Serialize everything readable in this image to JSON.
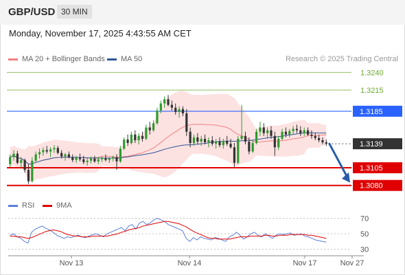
{
  "header": {
    "pair": "GBP/USD",
    "timeframe": "30 MIN"
  },
  "datetime": "Monday, November 17, 2025 4:43:55 AM CET",
  "legend": {
    "ma_label": "MA 20 + Bollinger Bands",
    "ma_color": "#f08080",
    "ma50_label": "MA 50",
    "ma50_color": "#2f5597"
  },
  "credit": "Research © 2025 Trading Central",
  "rsi_legend": {
    "rsi_label": "RSI",
    "rsi_color": "#5b7fd6",
    "ma_label": "9MA",
    "ma_color": "#e00000"
  },
  "chart_data": [
    {
      "type": "candlestick",
      "x_labels": [
        "Nov 13",
        "Nov 14",
        "Nov 17",
        "Nov 27"
      ],
      "ylim": [
        1.307,
        1.325
      ],
      "last_price": "1.3139",
      "levels": [
        {
          "label": "1.3240",
          "value": 1.324,
          "kind": "resistance",
          "color": "#6aaa2a"
        },
        {
          "label": "1.3215",
          "value": 1.3215,
          "kind": "resistance",
          "color": "#6aaa2a"
        },
        {
          "label": "1.3185",
          "value": 1.3185,
          "kind": "pivot",
          "color": "#2962ff"
        },
        {
          "label": "1.3105",
          "value": 1.3105,
          "kind": "support",
          "color": "#e00000"
        },
        {
          "label": "1.3080",
          "value": 1.308,
          "kind": "support",
          "color": "#e00000"
        }
      ],
      "projection": {
        "from": 1.314,
        "to": 1.308,
        "color": "#2a5ca8"
      },
      "candles": [
        [
          1.311,
          1.3124,
          1.3106,
          1.312
        ],
        [
          1.312,
          1.313,
          1.3115,
          1.3125
        ],
        [
          1.3125,
          1.3129,
          1.311,
          1.3112
        ],
        [
          1.3112,
          1.312,
          1.3105,
          1.3116
        ],
        [
          1.3116,
          1.3118,
          1.3098,
          1.3102
        ],
        [
          1.3102,
          1.311,
          1.3082,
          1.3086
        ],
        [
          1.3086,
          1.312,
          1.3084,
          1.3115
        ],
        [
          1.3115,
          1.3128,
          1.3112,
          1.3124
        ],
        [
          1.3124,
          1.3132,
          1.3118,
          1.3127
        ],
        [
          1.3127,
          1.3134,
          1.3122,
          1.313
        ],
        [
          1.313,
          1.3136,
          1.3125,
          1.3128
        ],
        [
          1.3128,
          1.3134,
          1.312,
          1.3131
        ],
        [
          1.3131,
          1.3137,
          1.3126,
          1.3133
        ],
        [
          1.3133,
          1.3136,
          1.3124,
          1.3126
        ],
        [
          1.3126,
          1.313,
          1.3118,
          1.3121
        ],
        [
          1.3121,
          1.3126,
          1.3115,
          1.3124
        ],
        [
          1.3124,
          1.3128,
          1.3118,
          1.312
        ],
        [
          1.312,
          1.3124,
          1.3113,
          1.3116
        ],
        [
          1.3116,
          1.3122,
          1.3112,
          1.3119
        ],
        [
          1.3119,
          1.3125,
          1.3114,
          1.3117
        ],
        [
          1.3117,
          1.3122,
          1.311,
          1.3113
        ],
        [
          1.3113,
          1.3119,
          1.3108,
          1.3115
        ],
        [
          1.3115,
          1.3121,
          1.3111,
          1.3118
        ],
        [
          1.3118,
          1.3122,
          1.3112,
          1.3114
        ],
        [
          1.3114,
          1.312,
          1.311,
          1.3117
        ],
        [
          1.3117,
          1.3121,
          1.3113,
          1.3119
        ],
        [
          1.3119,
          1.3124,
          1.3114,
          1.3116
        ],
        [
          1.3116,
          1.312,
          1.3112,
          1.3118
        ],
        [
          1.3118,
          1.3122,
          1.3114,
          1.312
        ],
        [
          1.312,
          1.3124,
          1.3102,
          1.3114
        ],
        [
          1.3114,
          1.3136,
          1.3112,
          1.3132
        ],
        [
          1.3132,
          1.3148,
          1.313,
          1.3145
        ],
        [
          1.3145,
          1.3152,
          1.3136,
          1.314
        ],
        [
          1.314,
          1.3156,
          1.3138,
          1.3152
        ],
        [
          1.3152,
          1.3158,
          1.314,
          1.3144
        ],
        [
          1.3144,
          1.3154,
          1.3138,
          1.315
        ],
        [
          1.315,
          1.3156,
          1.3142,
          1.3146
        ],
        [
          1.3146,
          1.3166,
          1.3144,
          1.3162
        ],
        [
          1.3162,
          1.317,
          1.3152,
          1.3158
        ],
        [
          1.3158,
          1.3172,
          1.3156,
          1.3168
        ],
        [
          1.3168,
          1.319,
          1.3166,
          1.3186
        ],
        [
          1.3186,
          1.32,
          1.3182,
          1.3196
        ],
        [
          1.3196,
          1.3206,
          1.319,
          1.3202
        ],
        [
          1.3202,
          1.3208,
          1.3192,
          1.3194
        ],
        [
          1.3194,
          1.32,
          1.3186,
          1.319
        ],
        [
          1.319,
          1.3196,
          1.318,
          1.3184
        ],
        [
          1.3184,
          1.3192,
          1.3176,
          1.3188
        ],
        [
          1.3188,
          1.3192,
          1.3178,
          1.3182
        ],
        [
          1.3182,
          1.3188,
          1.315,
          1.3156
        ],
        [
          1.3156,
          1.3162,
          1.3134,
          1.314
        ],
        [
          1.314,
          1.3152,
          1.3136,
          1.3148
        ],
        [
          1.3148,
          1.3154,
          1.3138,
          1.3142
        ],
        [
          1.3142,
          1.315,
          1.3136,
          1.3146
        ],
        [
          1.3146,
          1.3152,
          1.3138,
          1.3141
        ],
        [
          1.3141,
          1.3148,
          1.3134,
          1.3144
        ],
        [
          1.3144,
          1.315,
          1.3136,
          1.3139
        ],
        [
          1.3139,
          1.3146,
          1.3132,
          1.3142
        ],
        [
          1.3142,
          1.3148,
          1.3134,
          1.3137
        ],
        [
          1.3137,
          1.3146,
          1.3132,
          1.3143
        ],
        [
          1.3143,
          1.315,
          1.3136,
          1.3139
        ],
        [
          1.3139,
          1.3146,
          1.3132,
          1.3134
        ],
        [
          1.3134,
          1.314,
          1.3106,
          1.3112
        ],
        [
          1.3112,
          1.315,
          1.311,
          1.3146
        ],
        [
          1.3146,
          1.3194,
          1.3144,
          1.315
        ],
        [
          1.315,
          1.3156,
          1.3138,
          1.3142
        ],
        [
          1.3142,
          1.3148,
          1.3124,
          1.3128
        ],
        [
          1.3128,
          1.3144,
          1.3126,
          1.314
        ],
        [
          1.314,
          1.316,
          1.3138,
          1.3156
        ],
        [
          1.3156,
          1.317,
          1.315,
          1.3162
        ],
        [
          1.3162,
          1.3168,
          1.315,
          1.3154
        ],
        [
          1.3154,
          1.3162,
          1.3146,
          1.3158
        ],
        [
          1.3158,
          1.3164,
          1.3146,
          1.315
        ],
        [
          1.315,
          1.3156,
          1.3122,
          1.3134
        ],
        [
          1.3134,
          1.315,
          1.313,
          1.3146
        ],
        [
          1.3146,
          1.316,
          1.3144,
          1.3156
        ],
        [
          1.3156,
          1.3162,
          1.3148,
          1.3152
        ],
        [
          1.3152,
          1.316,
          1.3148,
          1.3157
        ],
        [
          1.3157,
          1.3164,
          1.3152,
          1.316
        ],
        [
          1.316,
          1.3166,
          1.3154,
          1.3158
        ],
        [
          1.3158,
          1.3164,
          1.315,
          1.3154
        ],
        [
          1.3154,
          1.3162,
          1.315,
          1.3158
        ],
        [
          1.3158,
          1.3162,
          1.315,
          1.3152
        ],
        [
          1.3152,
          1.3158,
          1.3146,
          1.315
        ],
        [
          1.315,
          1.3154,
          1.3144,
          1.3147
        ],
        [
          1.3147,
          1.3152,
          1.3141,
          1.3144
        ],
        [
          1.3144,
          1.3148,
          1.3138,
          1.3141
        ],
        [
          1.3141,
          1.3145,
          1.3136,
          1.3139
        ]
      ]
    },
    {
      "type": "line",
      "title": "RSI",
      "ylim": [
        25,
        75
      ],
      "y_ticks": [
        "70",
        "50",
        "30"
      ],
      "series": [
        {
          "name": "RSI",
          "color": "#5b7fd6",
          "values": [
            48,
            50,
            46,
            44,
            40,
            38,
            52,
            56,
            58,
            60,
            57,
            55,
            52,
            48,
            46,
            44,
            46,
            45,
            47,
            48,
            46,
            45,
            47,
            49,
            50,
            48,
            46,
            50,
            52,
            54,
            56,
            58,
            54,
            60,
            62,
            56,
            64,
            66,
            62,
            64,
            68,
            70,
            68,
            66,
            62,
            60,
            58,
            56,
            54,
            44,
            40,
            45,
            42,
            46,
            44,
            43,
            42,
            45,
            44,
            42,
            40,
            46,
            48,
            52,
            48,
            43,
            46,
            50,
            52,
            48,
            46,
            50,
            47,
            44,
            48,
            50,
            49,
            50,
            51,
            48,
            49,
            50,
            47,
            46,
            44,
            42,
            41,
            40,
            39
          ]
        },
        {
          "name": "9MA",
          "color": "#e00000",
          "values": [
            47,
            47,
            46,
            46,
            45,
            44,
            45,
            47,
            49,
            51,
            53,
            54,
            55,
            54,
            53,
            51,
            49,
            48,
            47,
            47,
            46,
            46,
            46,
            47,
            47,
            47,
            47,
            47,
            48,
            49,
            50,
            52,
            53,
            55,
            56,
            57,
            58,
            60,
            61,
            62,
            63,
            64,
            65,
            66,
            66,
            65,
            64,
            63,
            61,
            59,
            56,
            53,
            51,
            49,
            47,
            45,
            44,
            44,
            43,
            43,
            43,
            43,
            44,
            45,
            46,
            46,
            46,
            47,
            47,
            47,
            47,
            48,
            48,
            47,
            47,
            48,
            48,
            48,
            49,
            49,
            49,
            49,
            49,
            48,
            48,
            47,
            46,
            45,
            44
          ]
        }
      ]
    }
  ]
}
